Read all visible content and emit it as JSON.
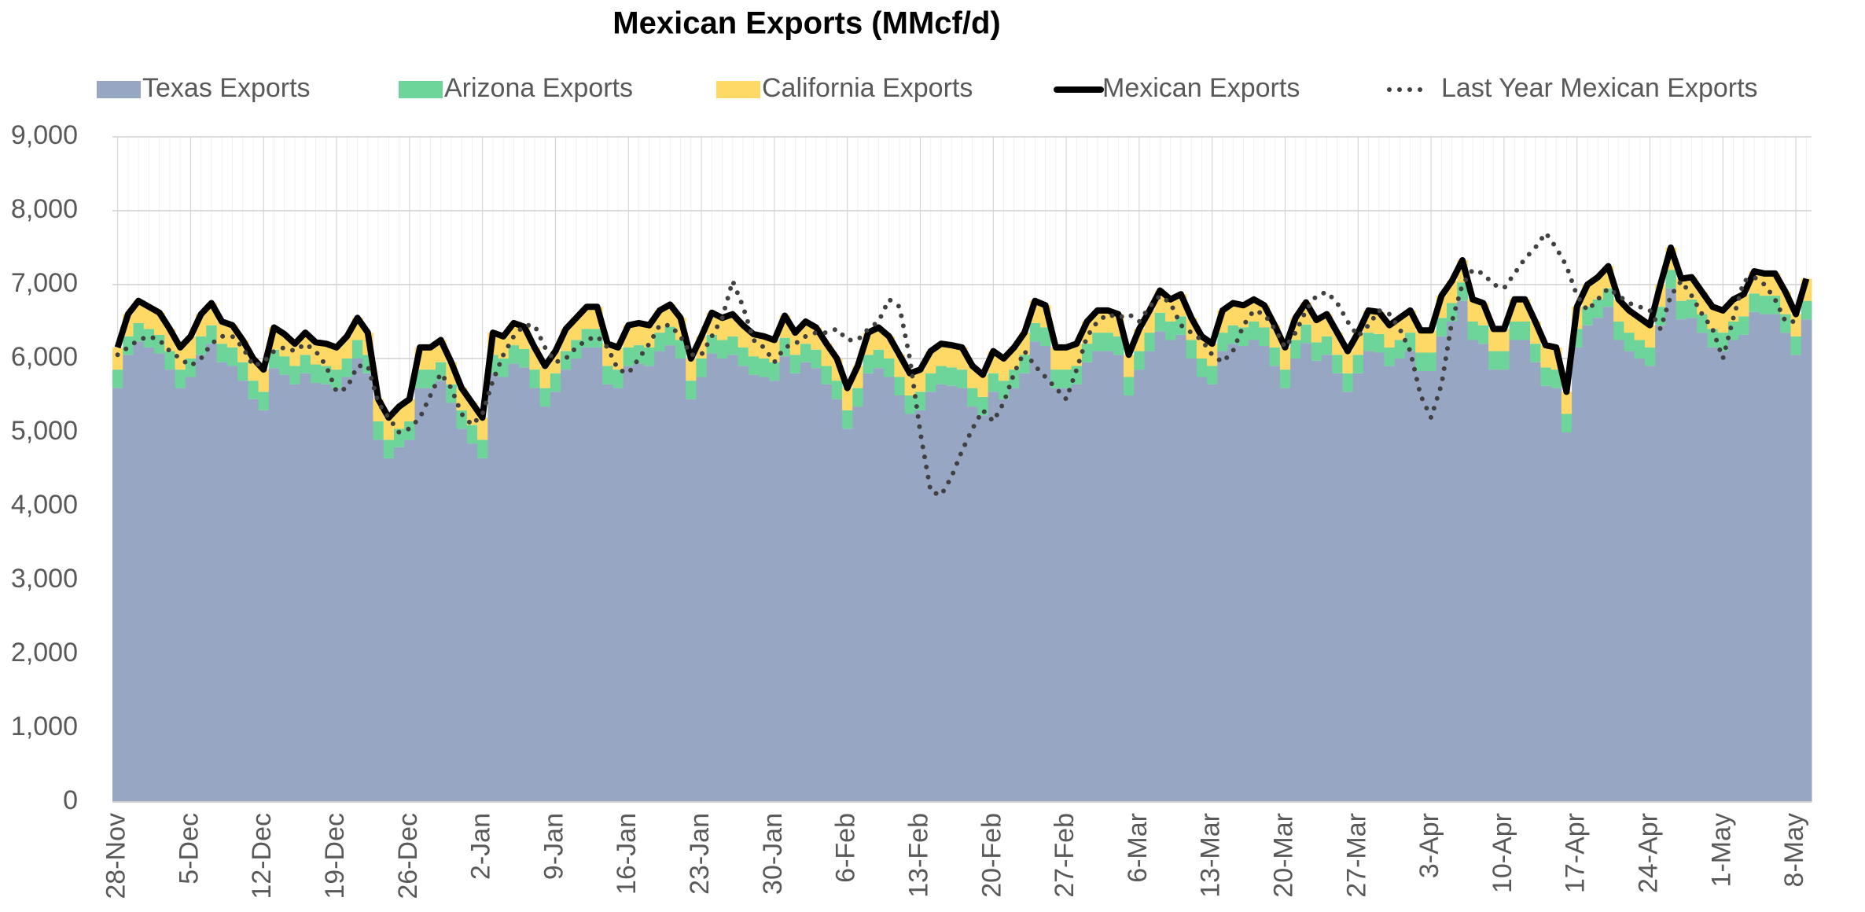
{
  "chart_data": {
    "type": "stacked-area-line",
    "title": "Mexican Exports (MMcf/d)",
    "categories": [
      "28-Nov",
      null,
      null,
      null,
      null,
      null,
      null,
      "5-Dec",
      null,
      null,
      null,
      null,
      null,
      null,
      "12-Dec",
      null,
      null,
      null,
      null,
      null,
      null,
      "19-Dec",
      null,
      null,
      null,
      null,
      null,
      null,
      "26-Dec",
      null,
      null,
      null,
      null,
      null,
      null,
      "2-Jan",
      null,
      null,
      null,
      null,
      null,
      null,
      "9-Jan",
      null,
      null,
      null,
      null,
      null,
      null,
      "16-Jan",
      null,
      null,
      null,
      null,
      null,
      null,
      "23-Jan",
      null,
      null,
      null,
      null,
      null,
      null,
      "30-Jan",
      null,
      null,
      null,
      null,
      null,
      null,
      "6-Feb",
      null,
      null,
      null,
      null,
      null,
      null,
      "13-Feb",
      null,
      null,
      null,
      null,
      null,
      null,
      "20-Feb",
      null,
      null,
      null,
      null,
      null,
      null,
      "27-Feb",
      null,
      null,
      null,
      null,
      null,
      null,
      "6-Mar",
      null,
      null,
      null,
      null,
      null,
      null,
      "13-Mar",
      null,
      null,
      null,
      null,
      null,
      null,
      "20-Mar",
      null,
      null,
      null,
      null,
      null,
      null,
      "27-Mar",
      null,
      null,
      null,
      null,
      null,
      null,
      "3-Apr",
      null,
      null,
      null,
      null,
      null,
      null,
      "10-Apr",
      null,
      null,
      null,
      null,
      null,
      null,
      "17-Apr",
      null,
      null,
      null,
      null,
      null,
      null,
      "24-Apr",
      null,
      null,
      null,
      null,
      null,
      null,
      "1-May",
      null,
      null,
      null,
      null,
      null,
      null,
      "8-May",
      null
    ],
    "ylim": [
      0,
      9000
    ],
    "yticks": [
      0,
      {
        "value": 1000,
        "label": "1,000"
      },
      {
        "value": 2000,
        "label": "2,000"
      },
      {
        "value": 3000,
        "label": "3,000"
      },
      {
        "value": 4000,
        "label": "4,000"
      },
      {
        "value": 5000,
        "label": "5,000"
      },
      {
        "value": 6000,
        "label": "6,000"
      },
      {
        "value": 7000,
        "label": "7,000"
      },
      {
        "value": 8000,
        "label": "8,000"
      },
      {
        "value": 9000,
        "label": "9,000"
      }
    ],
    "grid": true,
    "legend": "top",
    "series": [
      {
        "name": "Texas Exports",
        "color": "#97a6c2",
        "type": "stack",
        "values": [
          5600,
          6050,
          6230,
          6150,
          6070,
          5850,
          5600,
          5750,
          6050,
          6200,
          5950,
          5900,
          5700,
          5450,
          5300,
          5870,
          5780,
          5650,
          5800,
          5670,
          5650,
          5600,
          5750,
          6000,
          5800,
          4900,
          4650,
          4800,
          4900,
          5600,
          5600,
          5700,
          5400,
          5050,
          4850,
          4650,
          5800,
          5750,
          5930,
          5880,
          5600,
          5350,
          5550,
          5850,
          6000,
          6150,
          6150,
          5650,
          5600,
          5900,
          5930,
          5900,
          6100,
          6180,
          6000,
          5450,
          5750,
          6070,
          6000,
          6050,
          5900,
          5780,
          5750,
          5700,
          6030,
          5800,
          5950,
          5870,
          5650,
          5450,
          5050,
          5350,
          5800,
          5870,
          5750,
          5500,
          5250,
          5300,
          5550,
          5650,
          5630,
          5600,
          5350,
          5230,
          5550,
          5450,
          5600,
          5800,
          6230,
          6170,
          5600,
          5600,
          5650,
          5950,
          6100,
          6100,
          6050,
          5500,
          5850,
          6100,
          6370,
          6250,
          6320,
          6000,
          5750,
          5650,
          6100,
          6200,
          6170,
          6250,
          6170,
          5900,
          5600,
          6000,
          6210,
          5970,
          6050,
          5800,
          5550,
          5800,
          6100,
          6080,
          5900,
          6000,
          6100,
          5830,
          5830,
          6300,
          6500,
          6780,
          6250,
          6200,
          5850,
          5850,
          6250,
          6250,
          5950,
          5630,
          5600,
          5000,
          6150,
          6450,
          6550,
          6700,
          6250,
          6100,
          6000,
          5900,
          6450,
          6950,
          6530,
          6550,
          6350,
          6150,
          6100,
          6250,
          6320,
          6630,
          6600,
          6600,
          6350,
          6050,
          6530
        ]
      },
      {
        "name": "Arizona Exports",
        "color": "#6dd49a",
        "type": "stack",
        "values": [
          250,
          250,
          250,
          250,
          250,
          250,
          250,
          250,
          250,
          250,
          250,
          250,
          250,
          250,
          250,
          250,
          250,
          250,
          250,
          250,
          250,
          250,
          250,
          250,
          250,
          250,
          250,
          250,
          250,
          250,
          250,
          250,
          250,
          250,
          250,
          250,
          250,
          250,
          250,
          250,
          250,
          250,
          250,
          250,
          250,
          250,
          250,
          250,
          250,
          250,
          250,
          250,
          250,
          250,
          250,
          250,
          250,
          250,
          250,
          250,
          250,
          250,
          250,
          250,
          250,
          250,
          250,
          250,
          250,
          250,
          250,
          250,
          250,
          250,
          250,
          250,
          250,
          250,
          250,
          250,
          250,
          250,
          250,
          250,
          250,
          250,
          250,
          250,
          250,
          250,
          250,
          250,
          250,
          250,
          250,
          250,
          250,
          250,
          250,
          250,
          250,
          250,
          250,
          250,
          250,
          250,
          250,
          250,
          250,
          250,
          250,
          250,
          250,
          250,
          250,
          250,
          250,
          250,
          250,
          250,
          250,
          250,
          250,
          250,
          250,
          250,
          250,
          250,
          250,
          250,
          250,
          250,
          250,
          250,
          250,
          250,
          250,
          250,
          250,
          250,
          250,
          250,
          250,
          250,
          250,
          250,
          250,
          250,
          250,
          250,
          250,
          250,
          250,
          250,
          250,
          250,
          250,
          250,
          250,
          250,
          250,
          250,
          250
        ]
      },
      {
        "name": "California Exports",
        "color": "#ffd966",
        "type": "stack",
        "values": [
          300,
          300,
          300,
          300,
          300,
          300,
          300,
          300,
          300,
          300,
          300,
          300,
          300,
          300,
          300,
          300,
          300,
          300,
          300,
          300,
          300,
          300,
          300,
          300,
          300,
          300,
          300,
          300,
          300,
          300,
          300,
          300,
          300,
          300,
          300,
          300,
          300,
          300,
          300,
          300,
          300,
          300,
          300,
          300,
          300,
          300,
          300,
          300,
          300,
          300,
          300,
          300,
          300,
          300,
          300,
          300,
          300,
          300,
          300,
          300,
          300,
          300,
          300,
          300,
          300,
          300,
          300,
          300,
          300,
          300,
          300,
          300,
          300,
          300,
          300,
          300,
          300,
          300,
          300,
          300,
          300,
          300,
          300,
          300,
          300,
          300,
          300,
          300,
          300,
          300,
          300,
          300,
          300,
          300,
          300,
          300,
          300,
          300,
          300,
          300,
          300,
          300,
          300,
          300,
          300,
          300,
          300,
          300,
          300,
          300,
          300,
          300,
          300,
          300,
          300,
          300,
          300,
          300,
          300,
          300,
          300,
          300,
          300,
          300,
          300,
          300,
          300,
          300,
          300,
          300,
          300,
          300,
          300,
          300,
          300,
          300,
          300,
          300,
          300,
          300,
          300,
          300,
          300,
          300,
          300,
          300,
          300,
          300,
          300,
          300,
          300,
          300,
          300,
          300,
          300,
          300,
          300,
          300,
          300,
          300,
          300,
          300,
          300
        ]
      },
      {
        "name": "Mexican Exports",
        "color": "#000000",
        "type": "line",
        "style": "solid",
        "values": [
          6150,
          6600,
          6780,
          6700,
          6620,
          6400,
          6150,
          6300,
          6600,
          6750,
          6500,
          6450,
          6250,
          6000,
          5850,
          6420,
          6330,
          6200,
          6350,
          6220,
          6200,
          6150,
          6300,
          6550,
          6350,
          5450,
          5200,
          5350,
          5450,
          6150,
          6150,
          6250,
          5950,
          5600,
          5400,
          5200,
          6350,
          6300,
          6480,
          6430,
          6150,
          5900,
          6100,
          6400,
          6550,
          6700,
          6700,
          6200,
          6150,
          6450,
          6480,
          6450,
          6650,
          6730,
          6550,
          6000,
          6300,
          6620,
          6550,
          6600,
          6450,
          6330,
          6300,
          6250,
          6580,
          6350,
          6500,
          6420,
          6200,
          6000,
          5600,
          5900,
          6350,
          6420,
          6300,
          6050,
          5800,
          5850,
          6100,
          6200,
          6180,
          6150,
          5900,
          5780,
          6100,
          6000,
          6150,
          6350,
          6780,
          6720,
          6150,
          6150,
          6200,
          6500,
          6650,
          6650,
          6600,
          6050,
          6400,
          6650,
          6920,
          6800,
          6870,
          6550,
          6300,
          6200,
          6650,
          6750,
          6720,
          6800,
          6720,
          6450,
          6150,
          6550,
          6760,
          6520,
          6600,
          6350,
          6100,
          6350,
          6650,
          6630,
          6450,
          6550,
          6650,
          6380,
          6380,
          6850,
          7050,
          7330,
          6800,
          6750,
          6400,
          6400,
          6800,
          6800,
          6500,
          6180,
          6150,
          5550,
          6700,
          7000,
          7100,
          7250,
          6800,
          6650,
          6550,
          6450,
          7000,
          7500,
          7080,
          7100,
          6900,
          6700,
          6650,
          6800,
          6870,
          7180,
          7150,
          7150,
          6900,
          6600,
          7080
        ]
      },
      {
        "name": "Last Year Mexican Exports",
        "color": "#404040",
        "type": "line",
        "style": "dotted",
        "values": [
          6050,
          6150,
          6250,
          6300,
          6250,
          6100,
          6000,
          5900,
          6000,
          6200,
          6300,
          6300,
          6150,
          5900,
          5950,
          6100,
          6150,
          6100,
          6200,
          6100,
          5900,
          5550,
          5600,
          5900,
          5900,
          5400,
          5200,
          5000,
          5050,
          5200,
          5500,
          5800,
          5600,
          5250,
          5100,
          5250,
          5700,
          6050,
          6300,
          6450,
          6450,
          6150,
          5950,
          6000,
          6150,
          6250,
          6300,
          6150,
          5850,
          5800,
          6000,
          6200,
          6450,
          6450,
          6300,
          6050,
          6050,
          6300,
          6550,
          7050,
          6700,
          6250,
          6150,
          5950,
          6150,
          6200,
          6300,
          6350,
          6350,
          6400,
          6250,
          6250,
          6400,
          6500,
          6800,
          6700,
          6000,
          5000,
          4200,
          4150,
          4400,
          4750,
          5050,
          5300,
          5150,
          5400,
          5800,
          6100,
          5900,
          5750,
          5600,
          5450,
          5850,
          6300,
          6500,
          6600,
          6550,
          6600,
          6500,
          6700,
          6850,
          6750,
          6450,
          6350,
          6250,
          6050,
          5950,
          6100,
          6450,
          6650,
          6600,
          6400,
          6150,
          6350,
          6650,
          6850,
          6900,
          6750,
          6500,
          6300,
          6450,
          6650,
          6600,
          6400,
          6100,
          5500,
          5200,
          5650,
          6500,
          7000,
          7200,
          7150,
          7000,
          6950,
          7150,
          7350,
          7500,
          7700,
          7500,
          7250,
          6850,
          6650,
          6800,
          6950,
          6850,
          6750,
          6700,
          6650,
          6400,
          6850,
          7050,
          6850,
          6600,
          6400,
          6000,
          6550,
          7050,
          7100,
          7000,
          6800,
          6500,
          6500,
          null
        ]
      }
    ]
  }
}
